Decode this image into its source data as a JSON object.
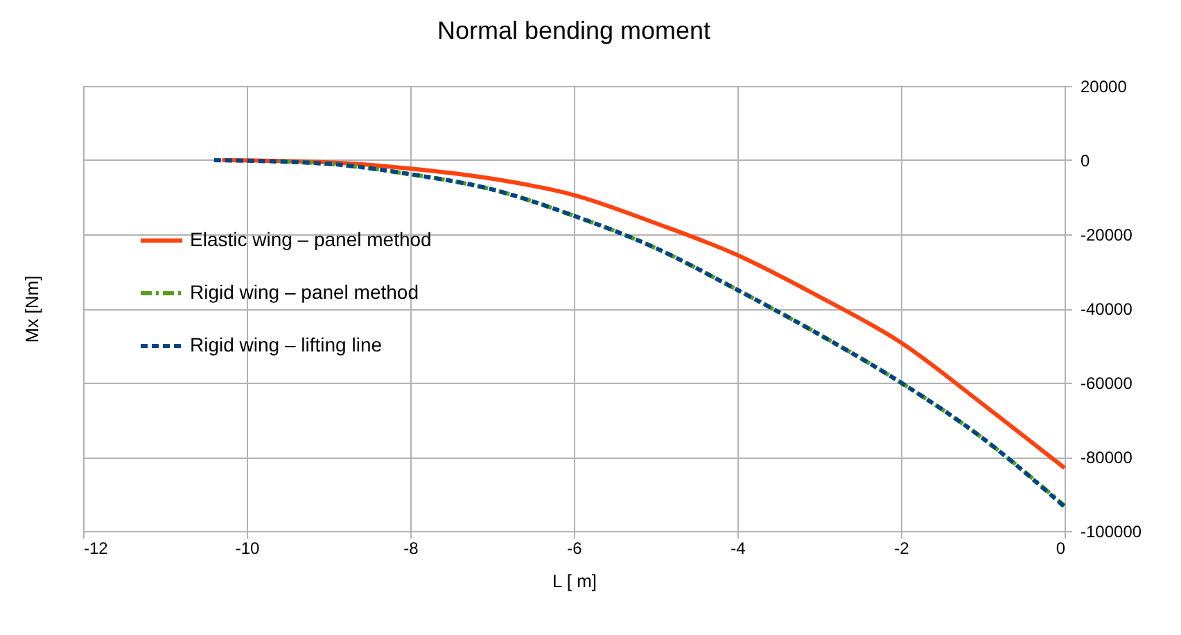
{
  "chart_data": {
    "type": "line",
    "title": "Normal bending moment",
    "xlabel": "L [ m]",
    "ylabel": "Mx [Nm]",
    "x": [
      -10.4,
      -9,
      -8,
      -7,
      -6,
      -5,
      -4,
      -3,
      -2,
      -1,
      0
    ],
    "series": [
      {
        "name": "Elastic wing – panel method",
        "color": "#ff420e",
        "line_style": "solid",
        "x": [
          -10.3,
          -9,
          -8,
          -7,
          -6,
          -5,
          -4,
          -3,
          -2,
          -1,
          0
        ],
        "values": [
          0,
          -600,
          -2300,
          -5000,
          -9400,
          -17000,
          -25600,
          -36800,
          -49200,
          -65800,
          -83000
        ]
      },
      {
        "name": "Rigid wing – panel method",
        "color": "#579d1c",
        "line_style": "dashdot",
        "x": [
          -9.6,
          -9,
          -8,
          -7,
          -6,
          -5,
          -4,
          -3,
          -2,
          -1,
          0
        ],
        "values": [
          -300,
          -1000,
          -3800,
          -7900,
          -15000,
          -23700,
          -35000,
          -47000,
          -60000,
          -75000,
          -93200
        ]
      },
      {
        "name": "Rigid wing – lifting line",
        "color": "#004586",
        "line_style": "dashed",
        "values": [
          0,
          -1000,
          -3800,
          -7900,
          -15000,
          -23700,
          -35000,
          -47000,
          -60000,
          -75000,
          -93500
        ]
      }
    ],
    "xlim": [
      -12,
      0
    ],
    "xticks": [
      -12,
      -10,
      -8,
      -6,
      -4,
      -2,
      0
    ],
    "ylim": [
      -100000,
      20000
    ],
    "yticks": [
      -100000,
      -80000,
      -60000,
      -40000,
      -20000,
      0,
      20000
    ],
    "grid": true,
    "legend": "left"
  }
}
